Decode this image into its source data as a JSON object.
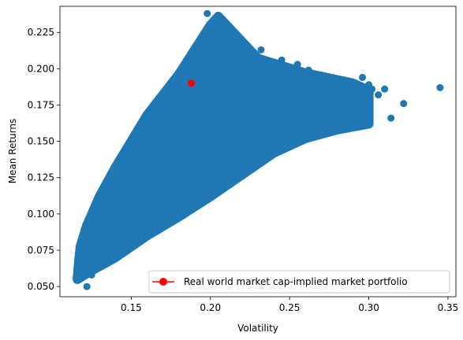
{
  "chart_data": {
    "type": "scatter",
    "xlabel": "Volatility",
    "ylabel": "Mean Returns",
    "xlim": [
      0.105,
      0.355
    ],
    "ylim": [
      0.043,
      0.243
    ],
    "xticks": [
      0.15,
      0.2,
      0.25,
      0.3,
      0.35
    ],
    "xtick_labels": [
      "0.15",
      "0.20",
      "0.25",
      "0.30",
      "0.35"
    ],
    "yticks": [
      0.05,
      0.075,
      0.1,
      0.125,
      0.15,
      0.175,
      0.2,
      0.225
    ],
    "ytick_labels": [
      "0.050",
      "0.075",
      "0.100",
      "0.125",
      "0.150",
      "0.175",
      "0.200",
      "0.225"
    ],
    "grid": false,
    "legend_position": "lower-right",
    "series": [
      {
        "kind": "random-portfolios",
        "color": "#1f77b4",
        "region_upper_frontier": [
          [
            0.116,
            0.055
          ],
          [
            0.117,
            0.068
          ],
          [
            0.118,
            0.078
          ],
          [
            0.122,
            0.092
          ],
          [
            0.13,
            0.112
          ],
          [
            0.14,
            0.132
          ],
          [
            0.15,
            0.15
          ],
          [
            0.16,
            0.168
          ],
          [
            0.17,
            0.182
          ],
          [
            0.18,
            0.196
          ],
          [
            0.19,
            0.213
          ],
          [
            0.2,
            0.23
          ],
          [
            0.205,
            0.236
          ]
        ],
        "region_lower_frontier": [
          [
            0.116,
            0.055
          ],
          [
            0.125,
            0.061
          ],
          [
            0.14,
            0.07
          ],
          [
            0.16,
            0.085
          ],
          [
            0.18,
            0.098
          ],
          [
            0.2,
            0.112
          ],
          [
            0.22,
            0.127
          ],
          [
            0.24,
            0.142
          ],
          [
            0.26,
            0.152
          ],
          [
            0.28,
            0.158
          ],
          [
            0.3,
            0.162
          ]
        ],
        "region_right_edge": [
          [
            0.205,
            0.236
          ],
          [
            0.23,
            0.207
          ],
          [
            0.26,
            0.197
          ],
          [
            0.29,
            0.19
          ],
          [
            0.3,
            0.185
          ],
          [
            0.3,
            0.162
          ]
        ],
        "outliers": [
          [
            0.122,
            0.05
          ],
          [
            0.125,
            0.058
          ],
          [
            0.135,
            0.067
          ],
          [
            0.16,
            0.084
          ],
          [
            0.198,
            0.238
          ],
          [
            0.205,
            0.23
          ],
          [
            0.21,
            0.229
          ],
          [
            0.22,
            0.218
          ],
          [
            0.232,
            0.213
          ],
          [
            0.245,
            0.206
          ],
          [
            0.255,
            0.203
          ],
          [
            0.262,
            0.199
          ],
          [
            0.275,
            0.194
          ],
          [
            0.282,
            0.181
          ],
          [
            0.286,
            0.186
          ],
          [
            0.288,
            0.178
          ],
          [
            0.292,
            0.168
          ],
          [
            0.296,
            0.194
          ],
          [
            0.3,
            0.189
          ],
          [
            0.302,
            0.186
          ],
          [
            0.306,
            0.182
          ],
          [
            0.31,
            0.186
          ],
          [
            0.314,
            0.166
          ],
          [
            0.322,
            0.176
          ],
          [
            0.345,
            0.187
          ]
        ]
      },
      {
        "name": "Real world market cap-implied market portfolio",
        "color": "#ff0000",
        "marker": "o",
        "points": [
          [
            0.188,
            0.19
          ]
        ]
      }
    ]
  }
}
